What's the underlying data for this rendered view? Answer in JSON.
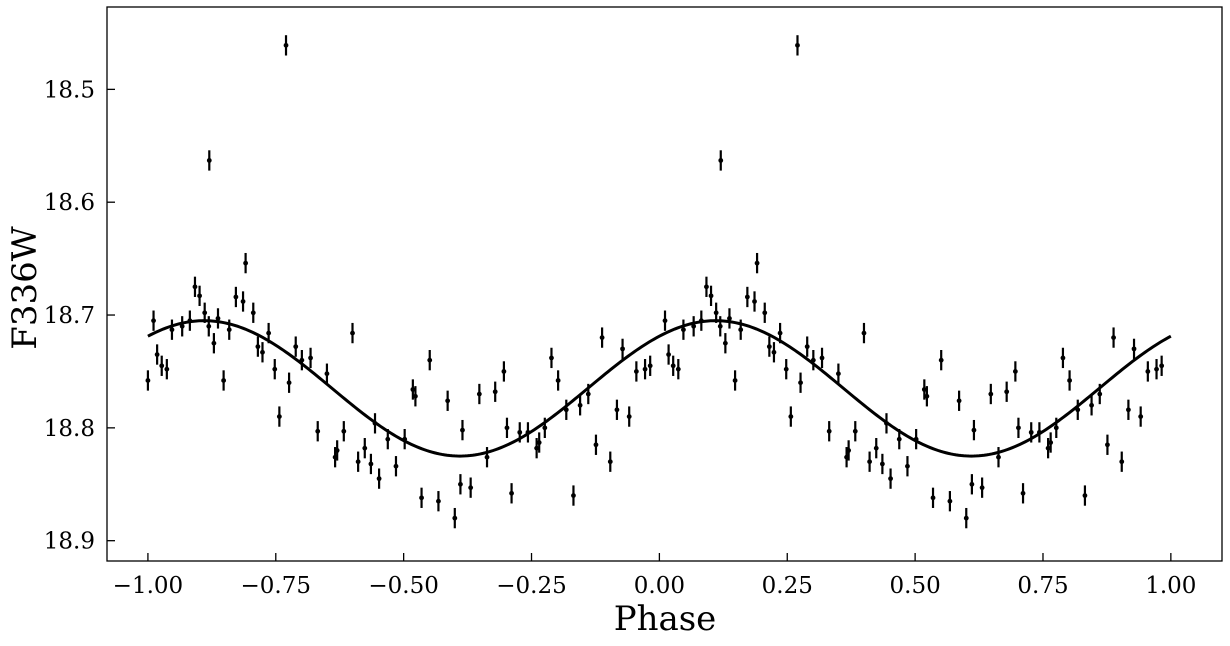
{
  "chart_data": {
    "type": "scatter",
    "xlabel": "Phase",
    "ylabel": "F336W",
    "xlim": [
      -1.08,
      1.1
    ],
    "ylim": [
      18.918,
      18.427
    ],
    "y_inverted": true,
    "grid": false,
    "legend": "none",
    "xticks": [
      -1.0,
      -0.75,
      -0.5,
      -0.25,
      0.0,
      0.25,
      0.5,
      0.75,
      1.0
    ],
    "xtick_labels": [
      "−1.00",
      "−0.75",
      "−0.50",
      "−0.25",
      "0.00",
      "0.25",
      "0.50",
      "0.75",
      "1.00"
    ],
    "yticks": [
      18.5,
      18.6,
      18.7,
      18.8,
      18.9
    ],
    "ytick_labels": [
      "18.5",
      "18.6",
      "18.7",
      "18.8",
      "18.9"
    ],
    "marker_color": "#000000",
    "line_color": "#000000",
    "error": 0.009,
    "points": [
      [
        0.011,
        18.705
      ],
      [
        0.018,
        18.735
      ],
      [
        0.027,
        18.745
      ],
      [
        0.037,
        18.748
      ],
      [
        0.047,
        18.713
      ],
      [
        0.067,
        18.71
      ],
      [
        0.082,
        18.705
      ],
      [
        0.092,
        18.675
      ],
      [
        0.101,
        18.683
      ],
      [
        0.111,
        18.698
      ],
      [
        0.119,
        18.71
      ],
      [
        0.129,
        18.725
      ],
      [
        0.137,
        18.703
      ],
      [
        0.148,
        18.758
      ],
      [
        0.159,
        18.713
      ],
      [
        0.172,
        18.684
      ],
      [
        0.186,
        18.688
      ],
      [
        0.191,
        18.654
      ],
      [
        0.206,
        18.698
      ],
      [
        0.215,
        18.728
      ],
      [
        0.224,
        18.733
      ],
      [
        0.236,
        18.716
      ],
      [
        0.248,
        18.748
      ],
      [
        0.257,
        18.79
      ],
      [
        0.276,
        18.76
      ],
      [
        0.289,
        18.728
      ],
      [
        0.301,
        18.74
      ],
      [
        0.318,
        18.738
      ],
      [
        0.332,
        18.803
      ],
      [
        0.35,
        18.752
      ],
      [
        0.366,
        18.826
      ],
      [
        0.383,
        18.803
      ],
      [
        0.4,
        18.716
      ],
      [
        0.411,
        18.83
      ],
      [
        0.424,
        18.818
      ],
      [
        0.436,
        18.832
      ],
      [
        0.452,
        18.845
      ],
      [
        0.469,
        18.81
      ],
      [
        0.485,
        18.834
      ],
      [
        0.502,
        18.81
      ],
      [
        0.518,
        18.766
      ],
      [
        0.535,
        18.862
      ],
      [
        0.551,
        18.74
      ],
      [
        0.568,
        18.865
      ],
      [
        0.586,
        18.776
      ],
      [
        0.6,
        18.88
      ],
      [
        0.615,
        18.802
      ],
      [
        0.631,
        18.853
      ],
      [
        0.648,
        18.77
      ],
      [
        0.663,
        18.826
      ],
      [
        0.679,
        18.768
      ],
      [
        0.696,
        18.75
      ],
      [
        0.711,
        18.858
      ],
      [
        0.727,
        18.804
      ],
      [
        0.743,
        18.804
      ],
      [
        0.76,
        18.818
      ],
      [
        0.776,
        18.8
      ],
      [
        0.789,
        18.738
      ],
      [
        0.802,
        18.758
      ],
      [
        0.818,
        18.784
      ],
      [
        0.832,
        18.86
      ],
      [
        0.845,
        18.78
      ],
      [
        0.861,
        18.77
      ],
      [
        0.876,
        18.815
      ],
      [
        0.888,
        18.72
      ],
      [
        0.904,
        18.83
      ],
      [
        0.917,
        18.784
      ],
      [
        0.928,
        18.73
      ],
      [
        0.941,
        18.79
      ],
      [
        0.955,
        18.75
      ],
      [
        0.972,
        18.748
      ],
      [
        0.982,
        18.745
      ],
      [
        0.12,
        18.563
      ],
      [
        0.27,
        18.461
      ],
      [
        0.523,
        18.772
      ],
      [
        0.611,
        18.85
      ],
      [
        0.765,
        18.813
      ],
      [
        0.37,
        18.82
      ],
      [
        0.444,
        18.796
      ],
      [
        0.702,
        18.8
      ],
      [
        -0.989,
        18.705
      ],
      [
        -0.982,
        18.735
      ],
      [
        -0.973,
        18.745
      ],
      [
        -0.963,
        18.748
      ],
      [
        -0.953,
        18.713
      ],
      [
        -0.933,
        18.71
      ],
      [
        -0.918,
        18.705
      ],
      [
        -0.908,
        18.675
      ],
      [
        -0.899,
        18.683
      ],
      [
        -0.889,
        18.698
      ],
      [
        -0.881,
        18.71
      ],
      [
        -0.871,
        18.725
      ],
      [
        -0.863,
        18.703
      ],
      [
        -0.852,
        18.758
      ],
      [
        -0.841,
        18.713
      ],
      [
        -0.828,
        18.684
      ],
      [
        -0.814,
        18.688
      ],
      [
        -0.809,
        18.654
      ],
      [
        -0.794,
        18.698
      ],
      [
        -0.785,
        18.728
      ],
      [
        -0.776,
        18.733
      ],
      [
        -0.764,
        18.716
      ],
      [
        -0.752,
        18.748
      ],
      [
        -0.743,
        18.79
      ],
      [
        -0.724,
        18.76
      ],
      [
        -0.711,
        18.728
      ],
      [
        -0.699,
        18.74
      ],
      [
        -0.682,
        18.738
      ],
      [
        -0.668,
        18.803
      ],
      [
        -0.65,
        18.752
      ],
      [
        -0.634,
        18.826
      ],
      [
        -0.617,
        18.803
      ],
      [
        -0.6,
        18.716
      ],
      [
        -0.589,
        18.83
      ],
      [
        -0.576,
        18.818
      ],
      [
        -0.564,
        18.832
      ],
      [
        -0.548,
        18.845
      ],
      [
        -0.531,
        18.81
      ],
      [
        -0.515,
        18.834
      ],
      [
        -0.498,
        18.81
      ],
      [
        -0.482,
        18.766
      ],
      [
        -0.465,
        18.862
      ],
      [
        -0.449,
        18.74
      ],
      [
        -0.432,
        18.865
      ],
      [
        -0.414,
        18.776
      ],
      [
        -0.4,
        18.88
      ],
      [
        -0.385,
        18.802
      ],
      [
        -0.369,
        18.853
      ],
      [
        -0.352,
        18.77
      ],
      [
        -0.337,
        18.826
      ],
      [
        -0.321,
        18.768
      ],
      [
        -0.304,
        18.75
      ],
      [
        -0.289,
        18.858
      ],
      [
        -0.273,
        18.804
      ],
      [
        -0.257,
        18.804
      ],
      [
        -0.24,
        18.818
      ],
      [
        -0.224,
        18.8
      ],
      [
        -0.211,
        18.738
      ],
      [
        -0.198,
        18.758
      ],
      [
        -0.182,
        18.784
      ],
      [
        -0.168,
        18.86
      ],
      [
        -0.155,
        18.78
      ],
      [
        -0.139,
        18.77
      ],
      [
        -0.124,
        18.815
      ],
      [
        -0.112,
        18.72
      ],
      [
        -0.096,
        18.83
      ],
      [
        -0.083,
        18.784
      ],
      [
        -0.072,
        18.73
      ],
      [
        -0.059,
        18.79
      ],
      [
        -0.045,
        18.75
      ],
      [
        -0.028,
        18.748
      ],
      [
        -0.018,
        18.745
      ],
      [
        -0.88,
        18.563
      ],
      [
        -0.73,
        18.461
      ],
      [
        -0.477,
        18.772
      ],
      [
        -0.389,
        18.85
      ],
      [
        -0.235,
        18.813
      ],
      [
        -0.63,
        18.82
      ],
      [
        -0.556,
        18.796
      ],
      [
        -0.298,
        18.8
      ],
      [
        -1.0,
        18.758
      ]
    ],
    "model": {
      "type": "sinusoid",
      "mean": 18.765,
      "amplitude": 0.06,
      "period": 1.0,
      "brightest_phase": 0.11
    }
  }
}
